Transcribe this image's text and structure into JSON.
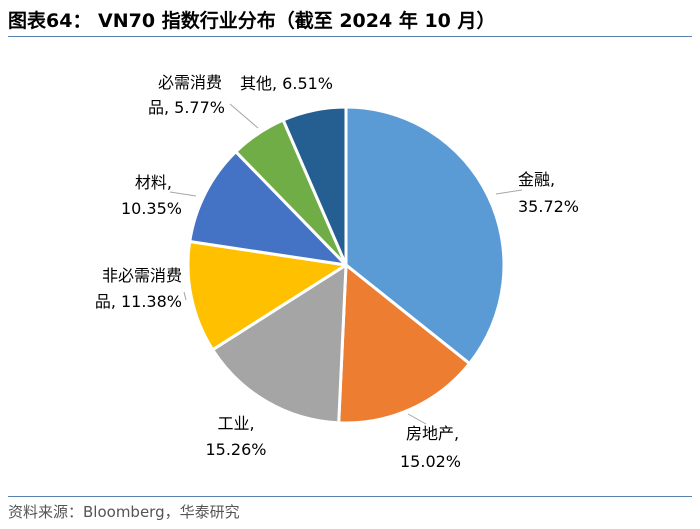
{
  "title": "图表64： VN70 指数行业分布（截至 2024 年 10 月）",
  "source": "资料来源：Bloomberg，华泰研究",
  "chart_data": {
    "type": "pie",
    "title": "VN70 指数行业分布（截至 2024 年 10 月）",
    "slices": [
      {
        "name": "金融",
        "value": 35.72,
        "label_line1": "金融,",
        "label_line2": "35.72%",
        "color": "#5B9BD5"
      },
      {
        "name": "房地产",
        "value": 15.02,
        "label_line1": "房地产,",
        "label_line2": "15.02%",
        "color": "#ED7D31"
      },
      {
        "name": "工业",
        "value": 15.26,
        "label_line1": "工业,",
        "label_line2": "15.26%",
        "color": "#A5A5A5"
      },
      {
        "name": "非必需消费品",
        "value": 11.38,
        "label_line1": "非必需消费",
        "label_line2": "品, 11.38%",
        "color": "#FFC000"
      },
      {
        "name": "材料",
        "value": 10.35,
        "label_line1": "材料,",
        "label_line2": "10.35%",
        "color": "#4472C4"
      },
      {
        "name": "必需消费品",
        "value": 5.77,
        "label_line1": "必需消费",
        "label_line2": "品, 5.77%",
        "color": "#70AD47"
      },
      {
        "name": "其他",
        "value": 6.51,
        "label_line1": "其他, 6.51%",
        "label_line2": "",
        "color": "#255E91"
      }
    ]
  }
}
